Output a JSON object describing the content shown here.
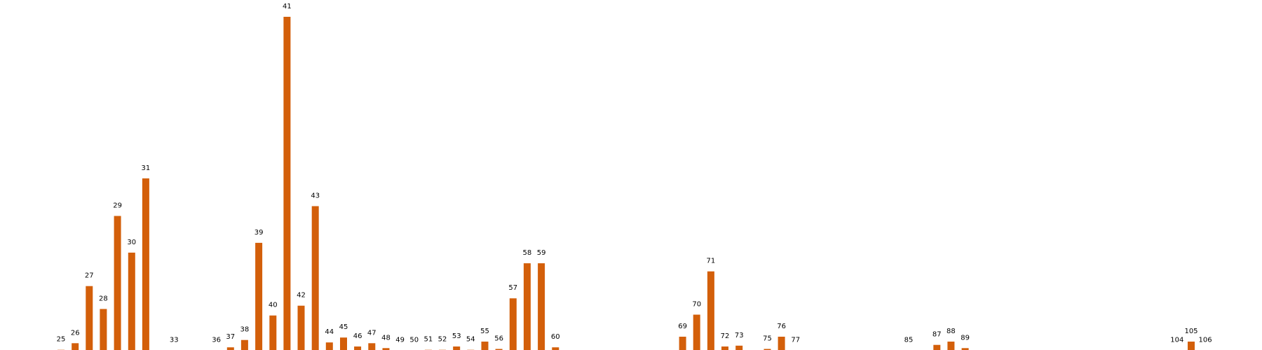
{
  "chart_data": {
    "type": "bar",
    "title": "",
    "xlabel": "",
    "ylabel": "",
    "axes_visible": false,
    "grid": false,
    "bar_color": "#d35f0a",
    "x_range": [
      25,
      106
    ],
    "ylim": [
      0,
      41
    ],
    "categories": [
      "25",
      "26",
      "27",
      "28",
      "29",
      "30",
      "31",
      "33",
      "36",
      "37",
      "38",
      "39",
      "40",
      "41",
      "42",
      "43",
      "44",
      "45",
      "46",
      "47",
      "48",
      "49",
      "50",
      "51",
      "52",
      "53",
      "54",
      "55",
      "56",
      "57",
      "58",
      "59",
      "60",
      "69",
      "70",
      "71",
      "72",
      "73",
      "75",
      "76",
      "77",
      "85",
      "87",
      "88",
      "89",
      "104",
      "105",
      "106"
    ],
    "values": [
      0.2,
      1.0,
      8.0,
      5.2,
      16.6,
      12.1,
      21.2,
      0.1,
      0.1,
      0.5,
      1.4,
      13.3,
      4.4,
      41.0,
      5.6,
      17.8,
      1.1,
      1.7,
      0.6,
      1.0,
      0.4,
      0.1,
      0.1,
      0.2,
      0.2,
      0.6,
      0.2,
      1.2,
      0.3,
      6.5,
      10.8,
      10.8,
      0.5,
      1.8,
      4.5,
      9.8,
      0.6,
      0.7,
      0.3,
      1.8,
      0.1,
      0.1,
      0.8,
      1.2,
      0.4,
      0.1,
      1.2,
      0.1
    ]
  }
}
